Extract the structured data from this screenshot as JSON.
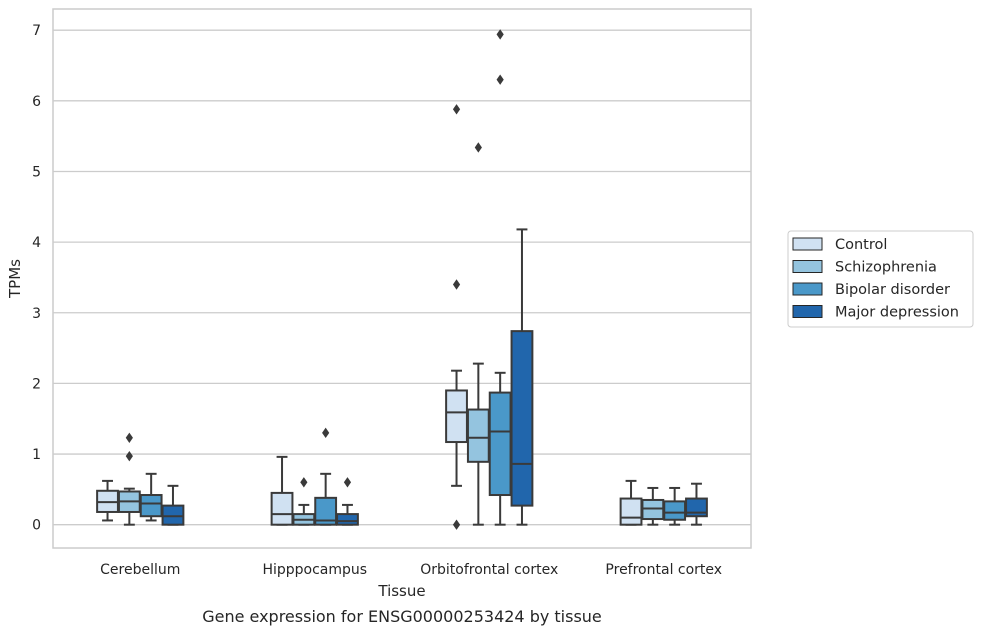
{
  "chart_data": {
    "type": "box",
    "xlabel": "Tissue",
    "ylabel": "TPMs",
    "caption": "Gene expression for ENSG00000253424 by tissue",
    "ylim": [
      -0.33,
      7.3
    ],
    "yticks": [
      0,
      1,
      2,
      3,
      4,
      5,
      6,
      7
    ],
    "grid": "horizontal",
    "legend_position": "right",
    "categories": [
      "Cerebellum",
      "Hipppocampus",
      "Orbitofrontal cortex",
      "Prefrontal cortex"
    ],
    "series": [
      {
        "name": "Control",
        "color": "#d0e1f2",
        "boxes": [
          {
            "whislo": 0.06,
            "q1": 0.18,
            "med": 0.32,
            "q3": 0.48,
            "whishi": 0.62,
            "fliers": []
          },
          {
            "whislo": 0.0,
            "q1": 0.0,
            "med": 0.15,
            "q3": 0.45,
            "whishi": 0.96,
            "fliers": []
          },
          {
            "whislo": 0.55,
            "q1": 1.17,
            "med": 1.59,
            "q3": 1.9,
            "whishi": 2.18,
            "fliers": [
              0.0,
              3.4,
              5.88
            ]
          },
          {
            "whislo": 0.0,
            "q1": 0.0,
            "med": 0.1,
            "q3": 0.37,
            "whishi": 0.62,
            "fliers": []
          }
        ]
      },
      {
        "name": "Schizophrenia",
        "color": "#94c4df",
        "boxes": [
          {
            "whislo": 0.0,
            "q1": 0.18,
            "med": 0.33,
            "q3": 0.47,
            "whishi": 0.51,
            "fliers": [
              0.97,
              1.23
            ]
          },
          {
            "whislo": 0.0,
            "q1": 0.0,
            "med": 0.07,
            "q3": 0.15,
            "whishi": 0.28,
            "fliers": [
              0.6
            ]
          },
          {
            "whislo": 0.0,
            "q1": 0.89,
            "med": 1.23,
            "q3": 1.63,
            "whishi": 2.28,
            "fliers": [
              5.34
            ]
          },
          {
            "whislo": 0.0,
            "q1": 0.08,
            "med": 0.23,
            "q3": 0.35,
            "whishi": 0.52,
            "fliers": []
          }
        ]
      },
      {
        "name": "Bipolar disorder",
        "color": "#4a98c9",
        "boxes": [
          {
            "whislo": 0.06,
            "q1": 0.12,
            "med": 0.3,
            "q3": 0.42,
            "whishi": 0.72,
            "fliers": []
          },
          {
            "whislo": 0.0,
            "q1": 0.0,
            "med": 0.06,
            "q3": 0.38,
            "whishi": 0.72,
            "fliers": [
              1.3
            ]
          },
          {
            "whislo": 0.0,
            "q1": 0.42,
            "med": 1.32,
            "q3": 1.87,
            "whishi": 2.15,
            "fliers": [
              6.3,
              6.94
            ]
          },
          {
            "whislo": 0.0,
            "q1": 0.07,
            "med": 0.17,
            "q3": 0.33,
            "whishi": 0.52,
            "fliers": []
          }
        ]
      },
      {
        "name": "Major depression",
        "color": "#2166ac",
        "boxes": [
          {
            "whislo": 0.0,
            "q1": 0.0,
            "med": 0.12,
            "q3": 0.27,
            "whishi": 0.55,
            "fliers": []
          },
          {
            "whislo": 0.0,
            "q1": 0.0,
            "med": 0.05,
            "q3": 0.15,
            "whishi": 0.28,
            "fliers": [
              0.6
            ]
          },
          {
            "whislo": 0.0,
            "q1": 0.27,
            "med": 0.86,
            "q3": 2.74,
            "whishi": 4.18,
            "fliers": []
          },
          {
            "whislo": 0.0,
            "q1": 0.12,
            "med": 0.17,
            "q3": 0.37,
            "whishi": 0.58,
            "fliers": []
          }
        ]
      }
    ]
  }
}
